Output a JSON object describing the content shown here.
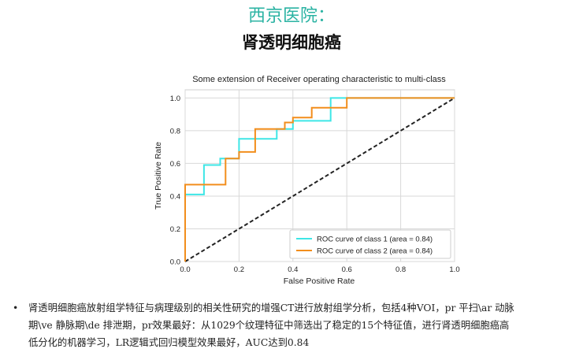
{
  "header": {
    "hospital": "西京医院：",
    "title": "肾透明细胞癌"
  },
  "chart_data": {
    "type": "line",
    "title": "Some extension of Receiver operating characteristic to multi-class",
    "xlabel": "False Positive Rate",
    "ylabel": "True Positive Rate",
    "xlim": [
      0.0,
      1.0
    ],
    "ylim": [
      0.0,
      1.05
    ],
    "xticks": [
      "0.0",
      "0.2",
      "0.4",
      "0.6",
      "0.8",
      "1.0"
    ],
    "yticks": [
      "0.0",
      "0.2",
      "0.4",
      "0.6",
      "0.8",
      "1.0"
    ],
    "grid": true,
    "legend_position": "lower-right",
    "series": [
      {
        "name": "ROC curve of class 1 (area = 0.84)",
        "color": "#3ee6e6",
        "x": [
          0,
          0,
          0.07,
          0.07,
          0.13,
          0.13,
          0.2,
          0.2,
          0.34,
          0.34,
          0.4,
          0.4,
          0.54,
          0.54,
          0.6,
          0.6,
          1.0
        ],
        "y": [
          0,
          0.41,
          0.41,
          0.59,
          0.59,
          0.63,
          0.63,
          0.75,
          0.75,
          0.81,
          0.81,
          0.86,
          0.86,
          1.0,
          1.0,
          1.0,
          1.0
        ]
      },
      {
        "name": "ROC curve of class 2 (area = 0.84)",
        "color": "#f28e1c",
        "x": [
          0,
          0,
          0.15,
          0.15,
          0.2,
          0.2,
          0.26,
          0.26,
          0.37,
          0.37,
          0.4,
          0.4,
          0.47,
          0.47,
          0.6,
          0.6,
          1.0
        ],
        "y": [
          0,
          0.47,
          0.47,
          0.63,
          0.63,
          0.67,
          0.67,
          0.81,
          0.81,
          0.85,
          0.85,
          0.88,
          0.88,
          0.94,
          0.94,
          1.0,
          1.0
        ]
      }
    ],
    "diagonal": {
      "x": [
        0,
        1
      ],
      "y": [
        0,
        1
      ],
      "color": "#222222",
      "style": "dashed"
    }
  },
  "bullet": {
    "lines": [
      "肾透明细胞癌放射组学特征与病理级别的相关性研究的增强CT进行放射组学分析，包括4种VOI，pr 平扫\\ar 动脉",
      "期\\ve 静脉期\\de 排泄期，pr效果最好：从1029个纹理特征中筛选出了稳定的15个特征值，进行肾透明细胞癌高",
      "低分化的机器学习，LR逻辑式回归模型效果最好，AUC达到0.84"
    ]
  }
}
